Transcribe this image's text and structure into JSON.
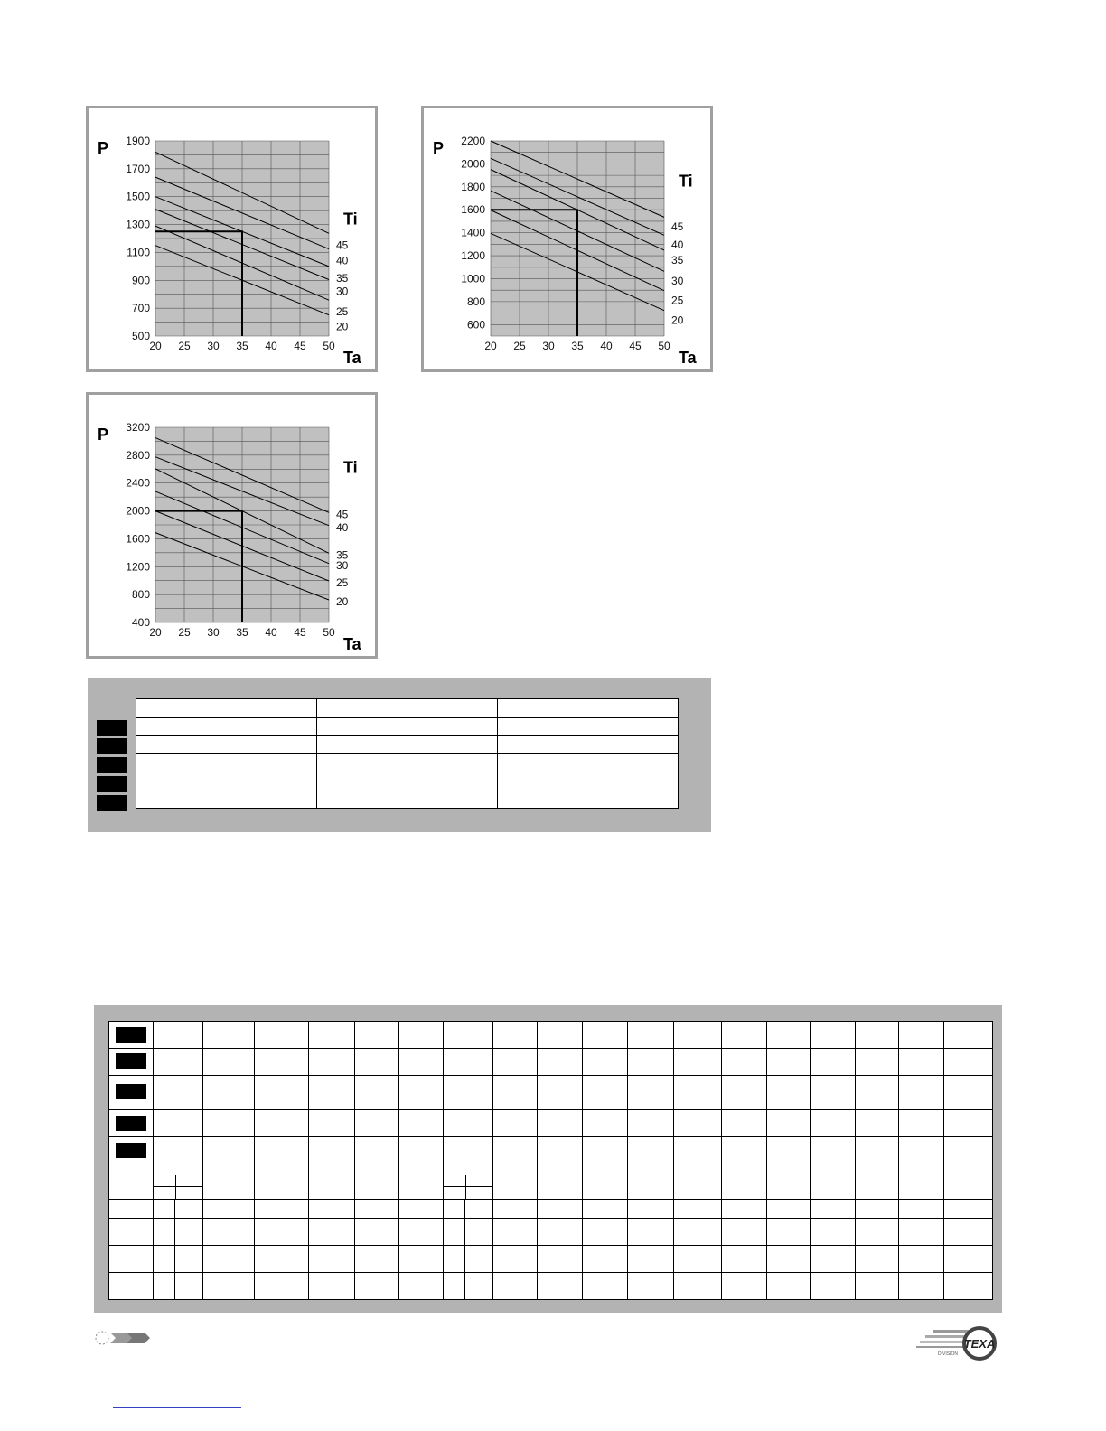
{
  "colors": {
    "frame": "#a0a0a0",
    "plot_bg": "#c0c0c0",
    "grid": "#555555",
    "line": "#000000",
    "table_bg": "#b3b3b3"
  },
  "chart_data": [
    {
      "type": "line",
      "ylabel": "P",
      "xlabel": "Ta",
      "legend_title": "Ti",
      "xlim": [
        20,
        50
      ],
      "ylim": [
        500,
        1900
      ],
      "x_ticks": [
        20,
        25,
        30,
        35,
        40,
        45,
        50
      ],
      "y_ticks": [
        500,
        700,
        900,
        1100,
        1300,
        1500,
        1700,
        1900
      ],
      "y_grid_step": 100,
      "grid": true,
      "series": [
        {
          "name": "45",
          "x": [
            20,
            50
          ],
          "y": [
            1820,
            1237
          ]
        },
        {
          "name": "40",
          "x": [
            20,
            50
          ],
          "y": [
            1640,
            1125
          ]
        },
        {
          "name": "35",
          "x": [
            20,
            50
          ],
          "y": [
            1500,
            1000
          ]
        },
        {
          "name": "30",
          "x": [
            20,
            50
          ],
          "y": [
            1410,
            905
          ]
        },
        {
          "name": "25",
          "x": [
            20,
            50
          ],
          "y": [
            1290,
            758
          ]
        },
        {
          "name": "20",
          "x": [
            20,
            50
          ],
          "y": [
            1150,
            651
          ]
        }
      ],
      "reference": {
        "x": 35,
        "y": 1250
      }
    },
    {
      "type": "line",
      "ylabel": "P",
      "xlabel": "Ta",
      "legend_title": "Ti",
      "xlim": [
        20,
        50
      ],
      "ylim": [
        500,
        2200
      ],
      "x_ticks": [
        20,
        25,
        30,
        35,
        40,
        45,
        50
      ],
      "y_ticks": [
        600,
        800,
        1000,
        1200,
        1400,
        1600,
        1800,
        2000,
        2200
      ],
      "y_grid_step": 100,
      "grid": true,
      "series": [
        {
          "name": "45",
          "x": [
            20,
            50
          ],
          "y": [
            2200,
            1536
          ]
        },
        {
          "name": "40",
          "x": [
            20,
            50
          ],
          "y": [
            2048,
            1379
          ]
        },
        {
          "name": "35",
          "x": [
            20,
            50
          ],
          "y": [
            1951,
            1248
          ]
        },
        {
          "name": "30",
          "x": [
            20,
            50
          ],
          "y": [
            1767,
            1064
          ]
        },
        {
          "name": "25",
          "x": [
            20,
            50
          ],
          "y": [
            1597,
            896
          ]
        },
        {
          "name": "20",
          "x": [
            20,
            50
          ],
          "y": [
            1395,
            723
          ]
        }
      ],
      "reference": {
        "x": 35,
        "y": 1600
      }
    },
    {
      "type": "line",
      "ylabel": "P",
      "xlabel": "Ta",
      "legend_title": "Ti",
      "xlim": [
        20,
        50
      ],
      "ylim": [
        400,
        3200
      ],
      "x_ticks": [
        20,
        25,
        30,
        35,
        40,
        45,
        50
      ],
      "y_ticks": [
        400,
        800,
        1200,
        1600,
        2000,
        2400,
        2800,
        3200
      ],
      "y_grid_step": 200,
      "grid": true,
      "series": [
        {
          "name": "45",
          "x": [
            20,
            50
          ],
          "y": [
            3050,
            1977
          ]
        },
        {
          "name": "40",
          "x": [
            20,
            50
          ],
          "y": [
            2776,
            1791
          ]
        },
        {
          "name": "35",
          "x": [
            20,
            50
          ],
          "y": [
            2604,
            1394
          ]
        },
        {
          "name": "30",
          "x": [
            20,
            50
          ],
          "y": [
            2280,
            1247
          ]
        },
        {
          "name": "25",
          "x": [
            20,
            50
          ],
          "y": [
            1999,
            996
          ]
        },
        {
          "name": "20",
          "x": [
            20,
            50
          ],
          "y": [
            1688,
            724
          ]
        }
      ],
      "reference": {
        "x": 35,
        "y": 2000
      }
    }
  ],
  "logo": {
    "brand": "TEXA",
    "sub": "DIVISION"
  }
}
